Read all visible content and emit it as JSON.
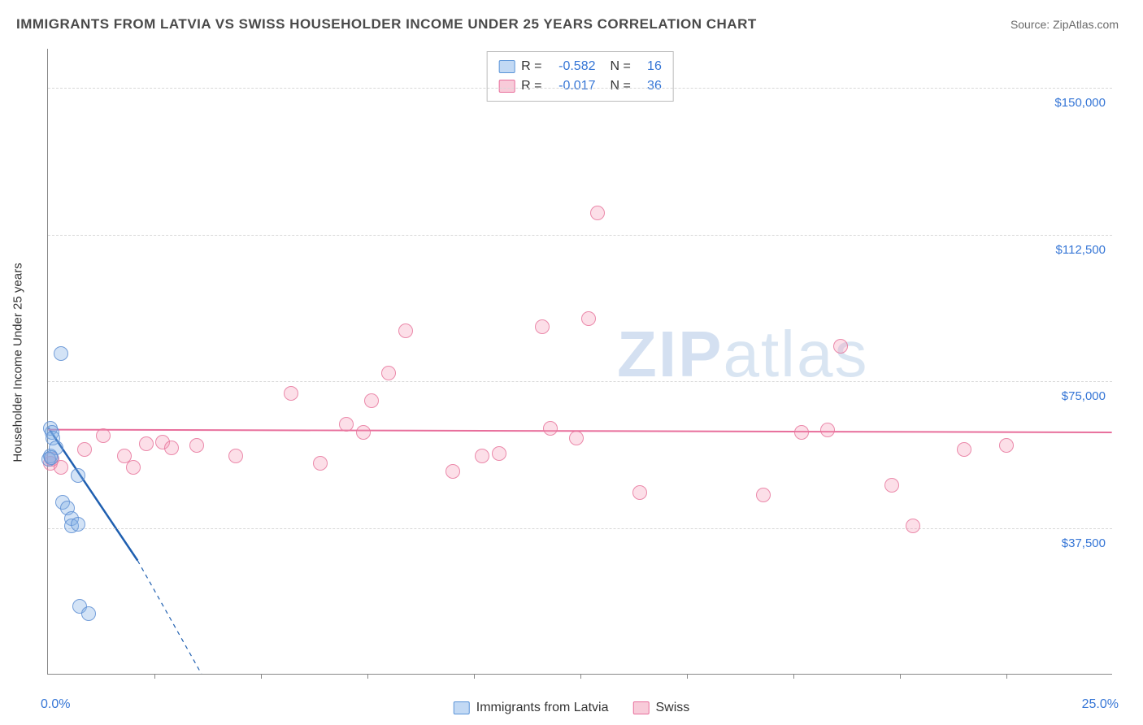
{
  "title": "IMMIGRANTS FROM LATVIA VS SWISS HOUSEHOLDER INCOME UNDER 25 YEARS CORRELATION CHART",
  "source": "Source: ZipAtlas.com",
  "watermark": {
    "bold": "ZIP",
    "light": "atlas"
  },
  "y_axis": {
    "label": "Householder Income Under 25 years",
    "ticks": [
      {
        "value": 37500,
        "label": "$37,500"
      },
      {
        "value": 75000,
        "label": "$75,000"
      },
      {
        "value": 112500,
        "label": "$112,500"
      },
      {
        "value": 150000,
        "label": "$150,000"
      }
    ],
    "min": 0,
    "max": 160000
  },
  "x_axis": {
    "min": 0,
    "max": 25,
    "tick_step": 2.5,
    "left_label": "0.0%",
    "right_label": "25.0%"
  },
  "legend_top": [
    {
      "series": "blue",
      "r": "-0.582",
      "n": "16"
    },
    {
      "series": "pink",
      "r": "-0.017",
      "n": "36"
    }
  ],
  "legend_bottom": [
    {
      "series": "blue",
      "label": "Immigrants from Latvia"
    },
    {
      "series": "pink",
      "label": "Swiss"
    }
  ],
  "series": {
    "blue": {
      "color_fill": "rgba(130,175,230,0.35)",
      "color_stroke": "rgba(90,140,210,0.8)",
      "marker_radius": 9,
      "points": [
        {
          "x": 0.05,
          "y": 63000
        },
        {
          "x": 0.1,
          "y": 62000
        },
        {
          "x": 0.12,
          "y": 60500
        },
        {
          "x": 0.05,
          "y": 56000
        },
        {
          "x": 0.3,
          "y": 82000
        },
        {
          "x": 0.02,
          "y": 55000
        },
        {
          "x": 0.7,
          "y": 51000
        },
        {
          "x": 0.35,
          "y": 44000
        },
        {
          "x": 0.45,
          "y": 42500
        },
        {
          "x": 0.55,
          "y": 40000
        },
        {
          "x": 0.55,
          "y": 38000
        },
        {
          "x": 0.7,
          "y": 38500
        },
        {
          "x": 0.75,
          "y": 17500
        },
        {
          "x": 0.95,
          "y": 15500
        },
        {
          "x": 0.2,
          "y": 58000
        },
        {
          "x": 0.08,
          "y": 55500
        }
      ],
      "trend": {
        "solid": {
          "x1": 0.0,
          "y1": 63000,
          "x2": 2.1,
          "y2": 29000
        },
        "dashed": {
          "x1": 2.1,
          "y1": 29000,
          "x2": 3.6,
          "y2": 0
        },
        "stroke": "#1f5fb0",
        "width": 2.5
      }
    },
    "pink": {
      "color_fill": "rgba(245,150,180,0.3)",
      "color_stroke": "rgba(230,115,155,0.8)",
      "marker_radius": 9,
      "points": [
        {
          "x": 0.05,
          "y": 54000
        },
        {
          "x": 0.1,
          "y": 55000
        },
        {
          "x": 0.85,
          "y": 57500
        },
        {
          "x": 1.3,
          "y": 61000
        },
        {
          "x": 1.8,
          "y": 56000
        },
        {
          "x": 2.0,
          "y": 53000
        },
        {
          "x": 2.3,
          "y": 59000
        },
        {
          "x": 2.7,
          "y": 59500
        },
        {
          "x": 2.9,
          "y": 58000
        },
        {
          "x": 3.5,
          "y": 58500
        },
        {
          "x": 4.4,
          "y": 56000
        },
        {
          "x": 5.7,
          "y": 72000
        },
        {
          "x": 6.4,
          "y": 54000
        },
        {
          "x": 7.0,
          "y": 64000
        },
        {
          "x": 7.4,
          "y": 62000
        },
        {
          "x": 7.6,
          "y": 70000
        },
        {
          "x": 8.0,
          "y": 77000
        },
        {
          "x": 8.4,
          "y": 88000
        },
        {
          "x": 9.5,
          "y": 52000
        },
        {
          "x": 10.2,
          "y": 56000
        },
        {
          "x": 10.6,
          "y": 56500
        },
        {
          "x": 11.6,
          "y": 89000
        },
        {
          "x": 11.8,
          "y": 63000
        },
        {
          "x": 12.4,
          "y": 60500
        },
        {
          "x": 12.7,
          "y": 91000
        },
        {
          "x": 12.9,
          "y": 118000
        },
        {
          "x": 13.9,
          "y": 46500
        },
        {
          "x": 16.8,
          "y": 46000
        },
        {
          "x": 17.7,
          "y": 62000
        },
        {
          "x": 18.3,
          "y": 62500
        },
        {
          "x": 18.6,
          "y": 84000
        },
        {
          "x": 19.8,
          "y": 48500
        },
        {
          "x": 20.3,
          "y": 38000
        },
        {
          "x": 21.5,
          "y": 57500
        },
        {
          "x": 22.5,
          "y": 58500
        },
        {
          "x": 0.3,
          "y": 53000
        }
      ],
      "trend": {
        "solid": {
          "x1": 0.0,
          "y1": 62500,
          "x2": 25.0,
          "y2": 61800
        },
        "stroke": "#e86f9c",
        "width": 2
      }
    }
  },
  "style": {
    "background": "#ffffff",
    "grid_color": "#d8d8d8",
    "axis_color": "#888888",
    "title_color": "#4a4a4a",
    "tick_label_color": "#3676d6",
    "title_fontsize": 17,
    "tick_fontsize": 15,
    "legend_fontsize": 16
  }
}
